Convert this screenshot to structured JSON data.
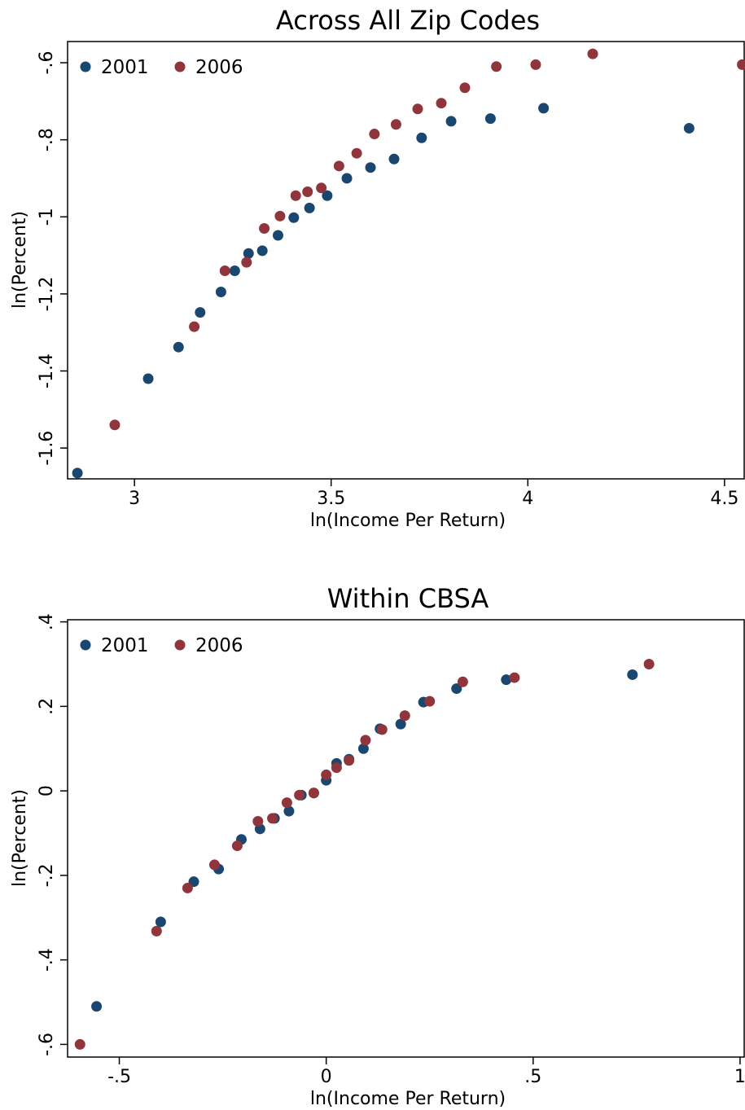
{
  "colors": {
    "series_2001": "#1a476f",
    "series_2006": "#90353b",
    "axis": "#000000",
    "background": "#ffffff"
  },
  "chart_data": [
    {
      "type": "scatter",
      "title": "Across All Zip Codes",
      "xlabel": "ln(Income Per Return)",
      "ylabel": "ln(Percent)",
      "xlim": [
        2.83,
        4.55
      ],
      "ylim": [
        -1.68,
        -0.545
      ],
      "xticks": [
        3,
        3.5,
        4,
        4.5
      ],
      "xtick_labels": [
        "3",
        "3.5",
        "4",
        "4.5"
      ],
      "yticks": [
        -1.6,
        -1.4,
        -1.2,
        -1,
        -0.8,
        -0.6
      ],
      "ytick_labels": [
        "-1.6",
        "-1.4",
        "-1.2",
        "-1",
        "-.8",
        "-.6"
      ],
      "grid": false,
      "legend": "top-left",
      "series": [
        {
          "name": "2001",
          "x": [
            2.855,
            3.035,
            3.112,
            3.167,
            3.22,
            3.255,
            3.29,
            3.325,
            3.365,
            3.405,
            3.445,
            3.49,
            3.54,
            3.6,
            3.66,
            3.73,
            3.805,
            3.905,
            4.04,
            4.41
          ],
          "y": [
            -1.665,
            -1.42,
            -1.338,
            -1.248,
            -1.195,
            -1.14,
            -1.095,
            -1.088,
            -1.048,
            -1.002,
            -0.977,
            -0.945,
            -0.9,
            -0.872,
            -0.85,
            -0.795,
            -0.752,
            -0.745,
            -0.718,
            -0.77
          ]
        },
        {
          "name": "2006",
          "x": [
            2.95,
            3.152,
            3.23,
            3.285,
            3.33,
            3.37,
            3.41,
            3.44,
            3.475,
            3.52,
            3.565,
            3.61,
            3.665,
            3.72,
            3.78,
            3.84,
            3.92,
            4.02,
            4.165,
            4.545
          ],
          "y": [
            -1.54,
            -1.285,
            -1.14,
            -1.118,
            -1.03,
            -0.998,
            -0.945,
            -0.935,
            -0.925,
            -0.868,
            -0.835,
            -0.785,
            -0.76,
            -0.72,
            -0.705,
            -0.665,
            -0.61,
            -0.605,
            -0.577,
            -0.605
          ]
        }
      ]
    },
    {
      "type": "scatter",
      "title": "Within CBSA",
      "xlabel": "ln(Income Per Return)",
      "ylabel": "ln(Percent)",
      "xlim": [
        -0.625,
        1.01
      ],
      "ylim": [
        -0.63,
        0.405
      ],
      "xticks": [
        -0.5,
        0,
        0.5,
        1
      ],
      "xtick_labels": [
        "-.5",
        "0",
        ".5",
        "1"
      ],
      "yticks": [
        -0.6,
        -0.4,
        -0.2,
        0,
        0.2,
        0.4
      ],
      "ytick_labels": [
        "-.6",
        "-.4",
        "-.2",
        "0",
        ".2",
        ".4"
      ],
      "grid": false,
      "legend": "top-left",
      "series": [
        {
          "name": "2001",
          "x": [
            -0.555,
            -0.4,
            -0.32,
            -0.26,
            -0.205,
            -0.16,
            -0.125,
            -0.09,
            -0.06,
            -0.03,
            0,
            0.025,
            0.055,
            0.09,
            0.13,
            0.18,
            0.235,
            0.315,
            0.435,
            0.74
          ],
          "y": [
            -0.51,
            -0.31,
            -0.215,
            -0.185,
            -0.115,
            -0.09,
            -0.065,
            -0.048,
            -0.01,
            -0.005,
            0.025,
            0.065,
            0.075,
            0.1,
            0.147,
            0.158,
            0.21,
            0.242,
            0.263,
            0.275
          ]
        },
        {
          "name": "2006",
          "x": [
            -0.595,
            -0.41,
            -0.335,
            -0.27,
            -0.215,
            -0.165,
            -0.13,
            -0.095,
            -0.065,
            -0.03,
            0,
            0.025,
            0.055,
            0.095,
            0.135,
            0.19,
            0.25,
            0.33,
            0.455,
            0.78
          ],
          "y": [
            -0.6,
            -0.332,
            -0.23,
            -0.175,
            -0.13,
            -0.072,
            -0.065,
            -0.028,
            -0.01,
            -0.005,
            0.038,
            0.055,
            0.072,
            0.12,
            0.145,
            0.178,
            0.212,
            0.258,
            0.268,
            0.3
          ]
        }
      ]
    }
  ]
}
